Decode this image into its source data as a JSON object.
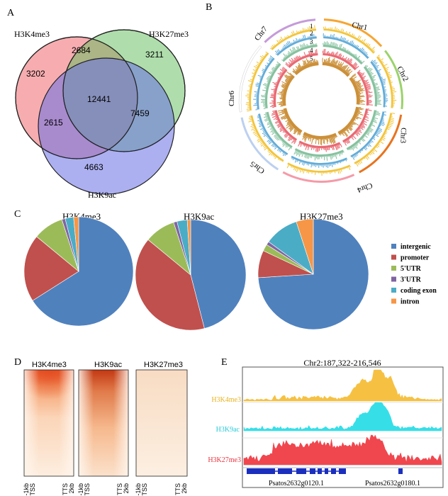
{
  "panels": {
    "a": {
      "letter": "A"
    },
    "b": {
      "letter": "B"
    },
    "c": {
      "letter": "C"
    },
    "d": {
      "letter": "D"
    },
    "e": {
      "letter": "E"
    }
  },
  "colors": {
    "h3k4me3_venn": "#f06a6f",
    "h3k27me3_venn": "#5fbe5a",
    "h3k9ac_venn": "#6870e6",
    "intergenic": "#4f81bd",
    "promoter": "#c0504d",
    "utr5": "#9bbb59",
    "utr3": "#8064a2",
    "coding_exon": "#4bacc6",
    "intron": "#f79646",
    "track_h3k4me3": "#f6c142",
    "track_h3k9ac": "#36dfe8",
    "track_h3k27me3": "#f0464e",
    "gene": "#1a2fbf"
  },
  "chart_data": [
    {
      "panel": "A",
      "type": "venn",
      "sets": [
        {
          "name": "H3K4me3",
          "only": 3202
        },
        {
          "name": "H3K27me3",
          "only": 3211
        },
        {
          "name": "H3K9ac",
          "only": 4663
        }
      ],
      "intersections": [
        {
          "sets": [
            "H3K4me3",
            "H3K27me3"
          ],
          "value": 2684
        },
        {
          "sets": [
            "H3K4me3",
            "H3K9ac"
          ],
          "value": 2615
        },
        {
          "sets": [
            "H3K27me3",
            "H3K9ac"
          ],
          "value": 7459
        },
        {
          "sets": [
            "H3K4me3",
            "H3K27me3",
            "H3K9ac"
          ],
          "value": 12441
        }
      ]
    },
    {
      "panel": "B",
      "type": "circos",
      "chromosomes": [
        {
          "name": "Chr1",
          "color": "#f7a531"
        },
        {
          "name": "Chr2",
          "color": "#9bd36a"
        },
        {
          "name": "Chr3",
          "color": "#e8741e"
        },
        {
          "name": "Chr4",
          "color": "#f59aa8"
        },
        {
          "name": "Chr5",
          "color": "#bcd0f0"
        },
        {
          "name": "Chr6",
          "color": "#ffffff"
        },
        {
          "name": "Chr7",
          "color": "#c59bd9"
        }
      ],
      "track_labels": [
        "1",
        "2",
        "3",
        "4",
        "5"
      ],
      "track_colors": [
        "#f2c230",
        "#5aa8d6",
        "#7fbf9a",
        "#e8616a",
        "#c98a2e"
      ]
    },
    {
      "panel": "C",
      "type": "pie",
      "legend": [
        "intergenic",
        "promoter",
        "5'UTR",
        "3'UTR",
        "coding exon",
        "intron"
      ],
      "series": [
        {
          "name": "H3K4me3",
          "values": [
            66,
            20,
            9,
            1,
            2.5,
            1.5
          ]
        },
        {
          "name": "H3K9ac",
          "values": [
            46,
            40,
            9,
            1,
            3,
            1
          ]
        },
        {
          "name": "H3K27me3",
          "values": [
            74,
            8,
            2,
            1,
            10,
            5
          ]
        }
      ]
    },
    {
      "panel": "D",
      "type": "heatmap",
      "titles": [
        "H3K4me3",
        "H3K9ac",
        "H3K27me3"
      ],
      "x_tick_labels": [
        "-1kb",
        "TSS",
        "TTS",
        "2kb"
      ]
    },
    {
      "panel": "E",
      "type": "area",
      "region": "Chr2:187,322-216,546",
      "tracks": [
        "H3K4me3",
        "H3K9ac",
        "H3K27me3"
      ],
      "genes": [
        "Psatos2632g0120.1",
        "Psatos2632g0180.1"
      ]
    }
  ]
}
